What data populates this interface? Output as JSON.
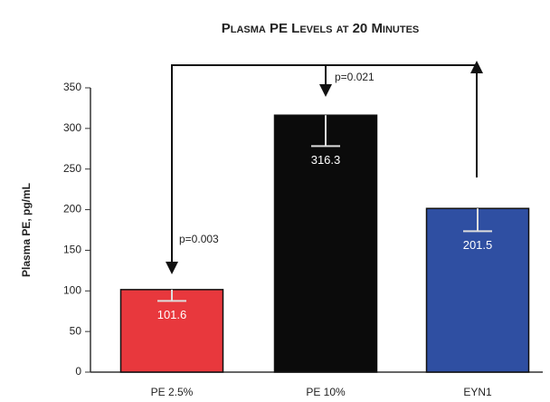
{
  "chart_data": {
    "type": "bar",
    "title": "Plasma PE Levels at 20 Minutes",
    "ylabel": "Plasma PE, pg/mL",
    "categories": [
      "PE 2.5%",
      "PE 10%",
      "EYN1"
    ],
    "values": [
      101.6,
      316.3,
      201.5
    ],
    "errors": [
      14,
      38,
      28
    ],
    "colors": [
      "#e8383d",
      "#0b0b0b",
      "#2f4fa2"
    ],
    "ylim": [
      0,
      350
    ],
    "yticks": [
      0,
      50,
      100,
      150,
      200,
      250,
      300,
      350
    ],
    "annotations": [
      "p=0.021",
      "p=0.003"
    ]
  }
}
